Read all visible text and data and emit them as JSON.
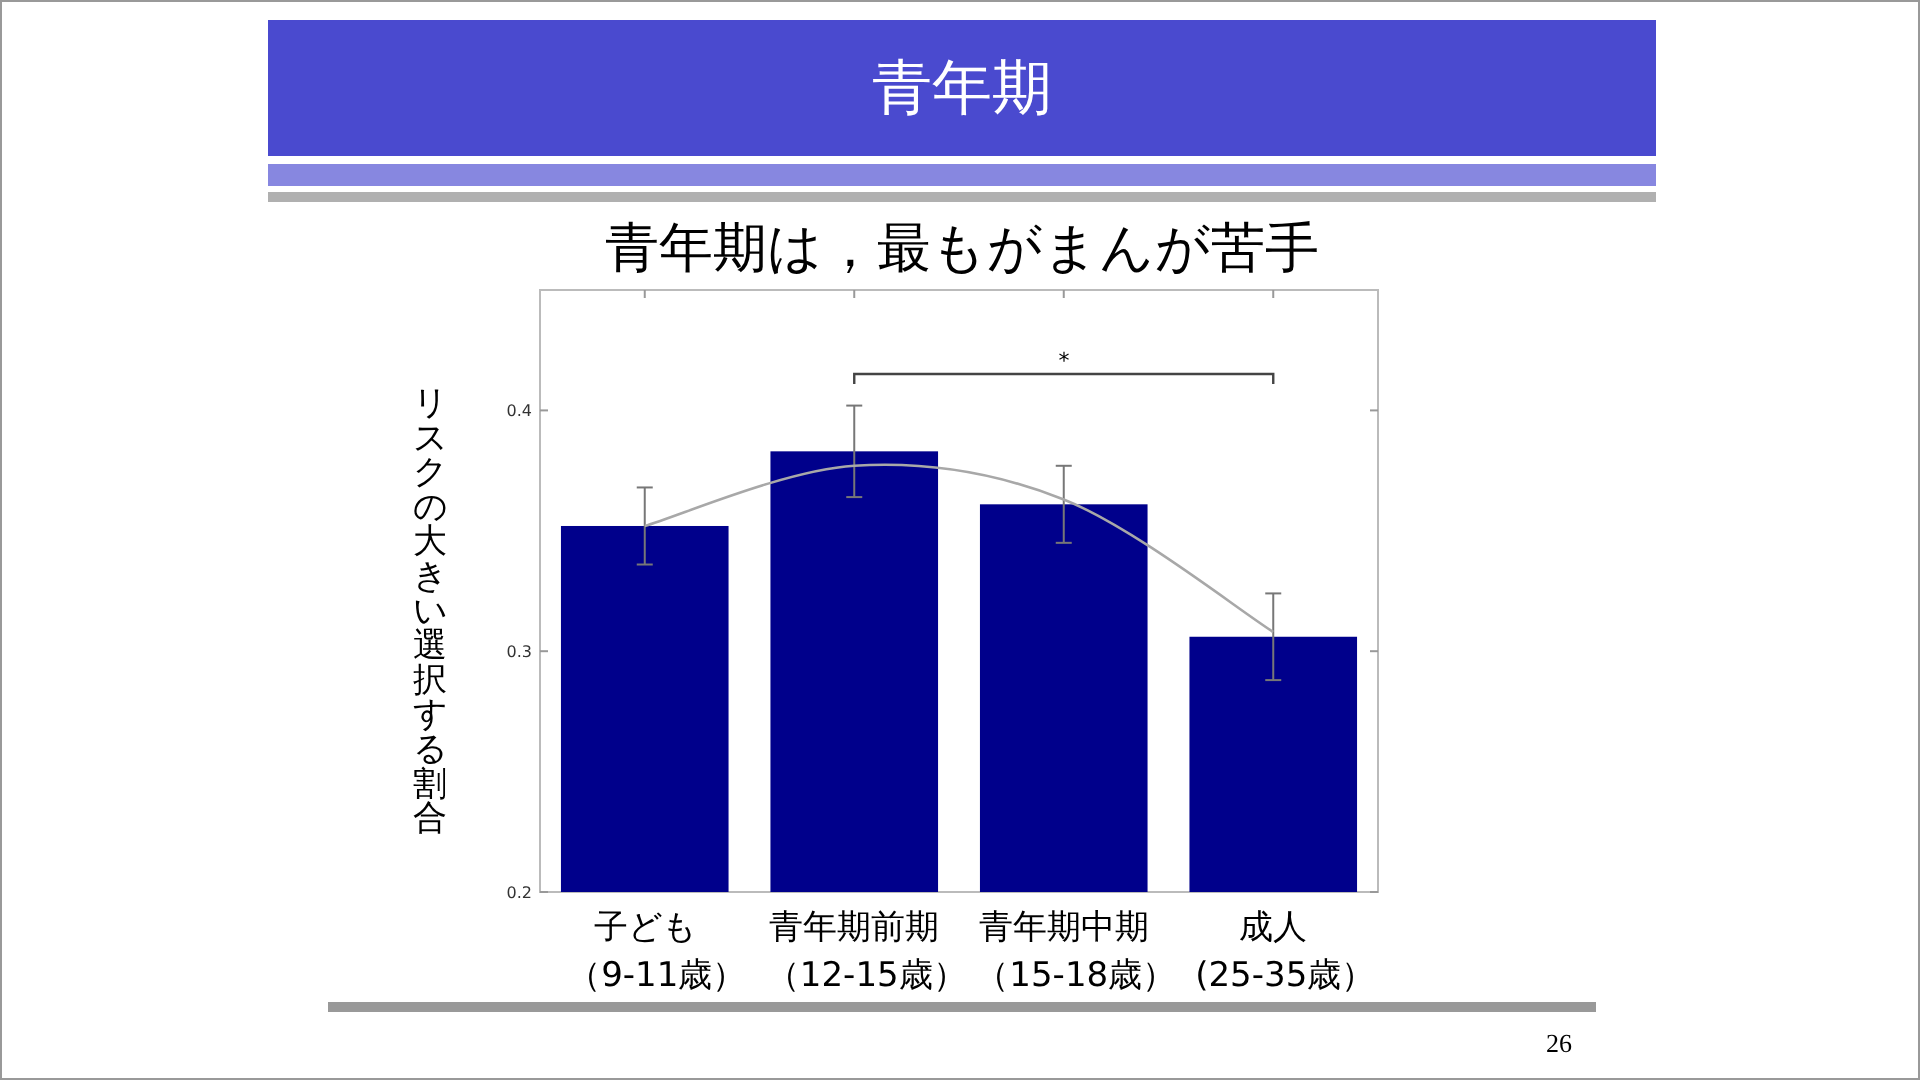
{
  "chart_data": {
    "type": "bar",
    "title": "青年期",
    "subtitle": "青年期は，最もがまんが苦手",
    "ylabel": "リスクの大きい選択する割合",
    "categories": [
      "子ども（9-11歳）",
      "青年期前期（12-15歳）",
      "青年期中期（15-18歳）",
      "成人(25-35歳）"
    ],
    "series": [
      {
        "type": "bar",
        "color": "#00008b",
        "values": [
          0.352,
          0.383,
          0.361,
          0.306
        ],
        "errors": [
          0.016,
          0.019,
          0.016,
          0.018
        ]
      },
      {
        "type": "line",
        "color": "#a8a8a8",
        "marker": "none",
        "values": [
          0.352,
          0.377,
          0.363,
          0.308
        ]
      }
    ],
    "ylim": [
      0.2,
      0.45
    ],
    "yticks": [
      0.2,
      0.3,
      0.4
    ],
    "annotations": [
      "*",
      "26"
    ]
  }
}
